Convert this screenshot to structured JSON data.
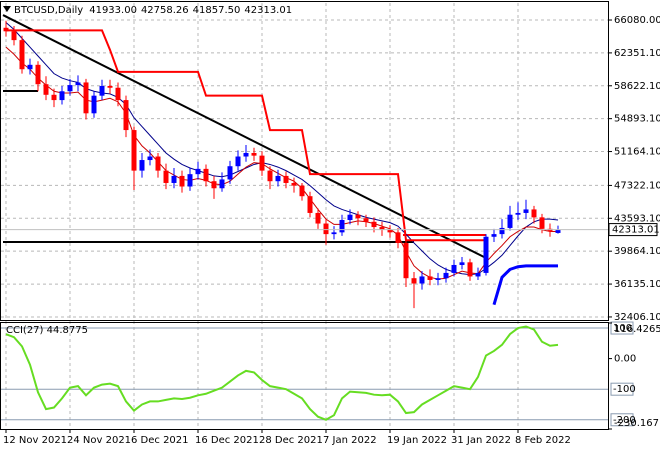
{
  "chart_data": [
    {
      "type": "candlestick",
      "title": "BTCUSD,Daily",
      "header_labels": [
        "41933.00",
        "42758.26",
        "41857.50",
        "42313.01"
      ],
      "categories": [
        "12 Nov 2021",
        null,
        null,
        null,
        null,
        null,
        null,
        null,
        "24 Nov 2021",
        null,
        null,
        null,
        null,
        null,
        null,
        null,
        "6 Dec 2021",
        null,
        null,
        null,
        null,
        null,
        null,
        null,
        "16 Dec 2021",
        null,
        null,
        null,
        null,
        null,
        null,
        null,
        "28 Dec 2021",
        null,
        null,
        null,
        null,
        null,
        null,
        null,
        "7 Jan 2022",
        null,
        null,
        null,
        null,
        null,
        null,
        null,
        "19 Jan 2022",
        null,
        null,
        null,
        null,
        null,
        null,
        null,
        "31 Jan 2022",
        null,
        null,
        null,
        null,
        null,
        null,
        null,
        "8 Feb 2022",
        null,
        null,
        null,
        null,
        null
      ],
      "open": [
        65200,
        64800,
        63800,
        60500,
        61000,
        58800,
        57600,
        57000,
        58000,
        58700,
        59000,
        55500,
        57500,
        58600,
        58400,
        57000,
        53600,
        49000,
        50200,
        50600,
        49000,
        47600,
        48400,
        47200,
        48600,
        49200,
        47800,
        47000,
        48000,
        49500,
        50600,
        51000,
        50700,
        49000,
        47800,
        48400,
        47600,
        47300,
        46100,
        44200,
        43000,
        41800,
        42000,
        43400,
        44000,
        43600,
        43200,
        42600,
        42300,
        42000,
        40800,
        36800,
        36200,
        37000,
        36600,
        36800,
        37400,
        38300,
        38600,
        37000,
        37400,
        41500,
        41800,
        42500,
        44000,
        44200,
        44600,
        43700,
        42400,
        41933
      ],
      "high": [
        66000,
        65400,
        64300,
        61700,
        61400,
        59700,
        58300,
        58600,
        59400,
        59800,
        59400,
        58000,
        59300,
        59300,
        59000,
        57500,
        54000,
        51000,
        51400,
        51000,
        49800,
        49300,
        49000,
        49300,
        50000,
        49700,
        48400,
        48800,
        50100,
        51300,
        51900,
        51600,
        51200,
        49500,
        49100,
        48900,
        48200,
        47600,
        46600,
        44700,
        43500,
        42700,
        44000,
        44600,
        44400,
        44000,
        43700,
        43200,
        42800,
        42500,
        41200,
        37500,
        37600,
        37800,
        37400,
        38000,
        38900,
        39200,
        39000,
        38000,
        41800,
        42400,
        43500,
        45000,
        45400,
        45700,
        45000,
        44100,
        43000,
        42758.26
      ],
      "low": [
        64200,
        63200,
        60000,
        59900,
        58000,
        57000,
        56200,
        56500,
        57500,
        58000,
        54800,
        55000,
        57000,
        57700,
        56300,
        52800,
        46800,
        48200,
        49600,
        48200,
        46900,
        47000,
        46500,
        46700,
        48000,
        47200,
        45800,
        46600,
        47500,
        49000,
        50000,
        50100,
        48400,
        46900,
        47200,
        47000,
        46500,
        45600,
        43700,
        42400,
        40600,
        41200,
        41600,
        42900,
        42800,
        42600,
        42000,
        41600,
        41400,
        40200,
        35800,
        33400,
        35500,
        36000,
        36000,
        36300,
        37000,
        37800,
        36500,
        36600,
        37100,
        40900,
        41300,
        42200,
        43400,
        43500,
        43000,
        41900,
        41500,
        41857.5
      ],
      "close": [
        64800,
        63800,
        60500,
        61000,
        58800,
        57600,
        57000,
        58000,
        58700,
        59000,
        55500,
        57500,
        58600,
        58400,
        57000,
        53600,
        49000,
        50200,
        50600,
        49000,
        47600,
        48400,
        47200,
        48600,
        49200,
        47800,
        47000,
        48000,
        49500,
        50600,
        51000,
        50700,
        49000,
        47800,
        48400,
        47600,
        47300,
        46100,
        44200,
        43000,
        41800,
        42000,
        43400,
        44000,
        43600,
        43200,
        42600,
        42300,
        42000,
        40800,
        36800,
        36200,
        37000,
        36600,
        36800,
        37400,
        38300,
        38600,
        37000,
        37400,
        41500,
        41800,
        42500,
        44000,
        44200,
        44600,
        43700,
        42400,
        42100,
        42313.01
      ],
      "up_color": "#0000ff",
      "down_color": "#ff0000",
      "series": [
        {
          "color": "#00008b",
          "values": [
            65800,
            65000,
            64000,
            63000,
            62000,
            61000,
            60000,
            59500,
            59200,
            59000,
            58300,
            58000,
            57800,
            57700,
            57300,
            56500,
            55000,
            54000,
            53000,
            52000,
            51000,
            50300,
            49700,
            49300,
            49000,
            48700,
            48400,
            48300,
            48500,
            48900,
            49300,
            49700,
            49900,
            49700,
            49400,
            49000,
            48500,
            48000,
            47300,
            46500,
            45700,
            45000,
            44600,
            44300,
            44000,
            43700,
            43500,
            43300,
            43100,
            42700,
            41800,
            40800,
            39900,
            39000,
            38300,
            37800,
            37500,
            37300,
            37200,
            37300,
            37900,
            38600,
            39400,
            40500,
            41600,
            42600,
            43200,
            43500,
            43500,
            43400
          ]
        },
        {
          "color": "#cc0000",
          "values": [
            63000,
            62200,
            61200,
            60500,
            59500,
            58700,
            58000,
            57800,
            57800,
            57900,
            57000,
            56800,
            57000,
            57200,
            56800,
            55500,
            53000,
            51800,
            51000,
            50000,
            49000,
            48500,
            48000,
            47900,
            48100,
            47900,
            47500,
            47400,
            47800,
            48600,
            49400,
            49900,
            49800,
            49200,
            48700,
            48200,
            47800,
            47000,
            45800,
            44600,
            43500,
            42900,
            42900,
            43100,
            43300,
            43200,
            43000,
            42700,
            42400,
            41700,
            39800,
            38200,
            37400,
            36900,
            36700,
            36800,
            37200,
            37600,
            37400,
            37300,
            38600,
            39600,
            40500,
            41500,
            42100,
            42600,
            42600,
            42300,
            42100,
            42100
          ]
        },
        {
          "color": "#ff0000",
          "width": 2,
          "values": [
            64900,
            64900,
            64900,
            64900,
            64900,
            64900,
            64900,
            64900,
            64900,
            64900,
            64900,
            64900,
            64900,
            62700,
            60200,
            60200,
            60200,
            60200,
            60200,
            60200,
            60200,
            60200,
            60200,
            60200,
            60200,
            57500,
            57500,
            57500,
            57500,
            57500,
            57500,
            57500,
            57500,
            53600,
            53600,
            53600,
            53600,
            53600,
            48600,
            48600,
            48600,
            48600,
            48600,
            48600,
            48600,
            48600,
            48600,
            48600,
            48600,
            48600,
            41100,
            41100,
            41100,
            41100,
            41100,
            41100,
            41100,
            41100,
            41100,
            41100,
            41100,
            null,
            null,
            null,
            null,
            null,
            null,
            null,
            null,
            null
          ]
        },
        {
          "color": "#0000ff",
          "width": 3,
          "values": [
            null,
            null,
            null,
            null,
            null,
            null,
            null,
            null,
            null,
            null,
            null,
            null,
            null,
            null,
            null,
            null,
            null,
            null,
            null,
            null,
            null,
            null,
            null,
            null,
            null,
            null,
            null,
            null,
            null,
            null,
            null,
            null,
            null,
            null,
            null,
            null,
            null,
            null,
            null,
            null,
            null,
            null,
            null,
            null,
            null,
            null,
            null,
            null,
            null,
            null,
            null,
            null,
            null,
            null,
            null,
            null,
            null,
            null,
            null,
            null,
            null,
            33800,
            36900,
            37800,
            38100,
            38200,
            38200,
            38200,
            38200,
            38200
          ]
        }
      ],
      "trendlines": [
        {
          "color": "#000000",
          "x": [
            0,
            60
          ],
          "values": [
            66640,
            39090
          ]
        },
        {
          "color": "#000000",
          "x": [
            0,
            4
          ],
          "values": [
            58030,
            58030
          ]
        },
        {
          "color": "#000000",
          "x": [
            0,
            51
          ],
          "values": [
            40900,
            40900
          ]
        },
        {
          "color": "#ff0000",
          "x": [
            50,
            60
          ],
          "values": [
            41700,
            41700
          ]
        }
      ],
      "ylim": [
        32060,
        68010
      ],
      "yticks": [
        {
          "value": 66080,
          "label": "66080.00"
        },
        {
          "value": 62351.1,
          "label": "62351.10"
        },
        {
          "value": 58622.1,
          "label": "58622.10"
        },
        {
          "value": 54893.1,
          "label": "54893.10"
        },
        {
          "value": 51164.1,
          "label": "51164.10"
        },
        {
          "value": 47322.1,
          "label": "47322.10"
        },
        {
          "value": 43593.1,
          "label": "43593.10"
        },
        {
          "value": 39864.1,
          "label": "39864.10"
        },
        {
          "value": 36135.1,
          "label": "36135.10"
        },
        {
          "value": 32406.1,
          "label": "32406.10"
        }
      ],
      "grid": true
    },
    {
      "type": "line",
      "title": "CCI(27) 44.8775",
      "color": "#66dd22",
      "values": [
        80,
        70,
        40,
        -20,
        -110,
        -165,
        -160,
        -130,
        -95,
        -90,
        -120,
        -95,
        -85,
        -82,
        -90,
        -140,
        -170,
        -150,
        -140,
        -140,
        -135,
        -130,
        -132,
        -128,
        -120,
        -115,
        -105,
        -95,
        -75,
        -55,
        -40,
        -45,
        -70,
        -90,
        -95,
        -100,
        -115,
        -130,
        -165,
        -190,
        -200,
        -185,
        -130,
        -108,
        -110,
        -112,
        -118,
        -120,
        -118,
        -140,
        -178,
        -175,
        -150,
        -135,
        -120,
        -105,
        -90,
        -95,
        -100,
        -60,
        10,
        25,
        45,
        80,
        100,
        105,
        95,
        55,
        42,
        44.8775
      ],
      "ylim": [
        -230.1671,
        116.4265
      ],
      "yticks": [
        116.4265,
        {
          "value": 0,
          "label": "0.00"
        },
        -230.1671
      ],
      "levels": [
        100,
        -100,
        -200
      ],
      "level_color": "#8a9bb0",
      "grid": true
    }
  ]
}
